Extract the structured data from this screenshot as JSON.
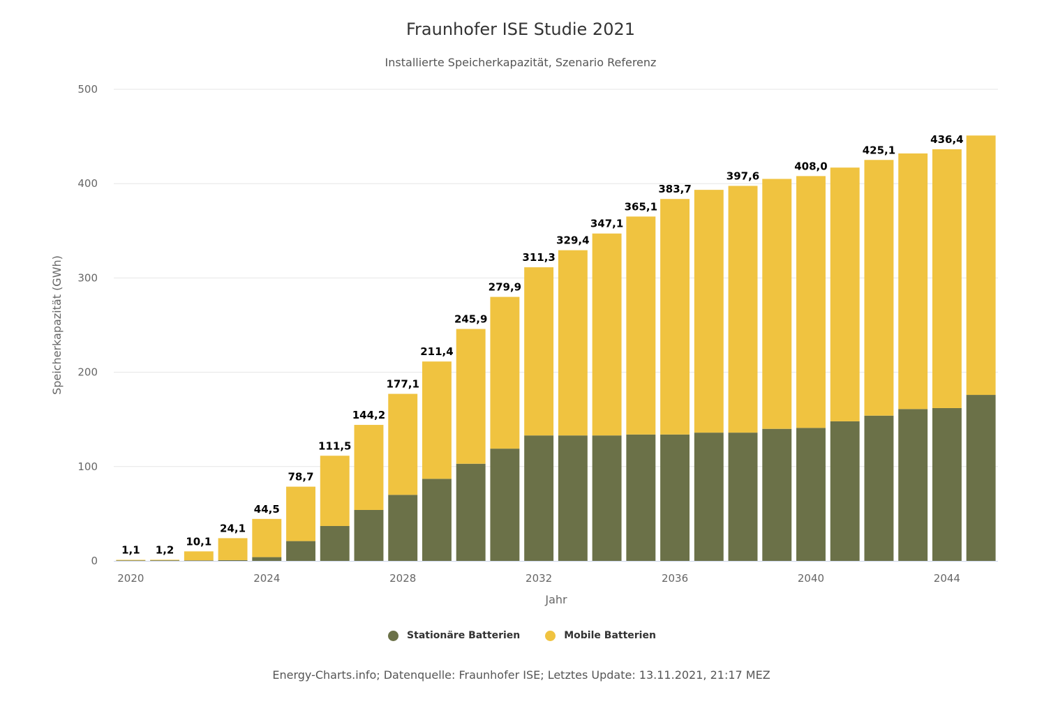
{
  "chart_data": {
    "type": "bar",
    "stacked": true,
    "title": "Fraunhofer ISE Studie 2021",
    "subtitle": "Installierte Speicherkapazität, Szenario Referenz",
    "xlabel": "Jahr",
    "ylabel": "Speicherkapazität (GWh)",
    "ylim": [
      0,
      500
    ],
    "yticks": [
      "0",
      "100",
      "200",
      "300",
      "400",
      "500"
    ],
    "xticks": [
      "2020",
      "2024",
      "2028",
      "2032",
      "2036",
      "2040",
      "2044"
    ],
    "grid": true,
    "legend_position": "bottom",
    "categories": [
      2020,
      2021,
      2022,
      2023,
      2024,
      2025,
      2026,
      2027,
      2028,
      2029,
      2030,
      2031,
      2032,
      2033,
      2034,
      2035,
      2036,
      2037,
      2038,
      2039,
      2040,
      2041,
      2042,
      2043,
      2044,
      2045
    ],
    "series": [
      {
        "name": "Stationäre Batterien",
        "color": "#6b7148",
        "values": [
          0.5,
          0.6,
          0.5,
          0.8,
          4,
          21,
          37,
          54,
          70,
          87,
          103,
          119,
          133,
          133,
          133,
          134,
          134,
          136,
          136,
          140,
          141,
          148,
          154,
          161,
          162,
          176
        ]
      },
      {
        "name": "Mobile Batterien",
        "color": "#f0c340",
        "values": [
          0.6,
          0.6,
          9.6,
          23.3,
          40.5,
          57.7,
          74.5,
          90.2,
          107.1,
          124.4,
          142.9,
          160.9,
          178.3,
          196.4,
          214.1,
          231.1,
          249.7,
          257.4,
          261.6,
          265.0,
          267.0,
          269.0,
          271.1,
          271.0,
          274.4,
          275.0
        ]
      }
    ],
    "labels": [
      "1,1",
      "1,2",
      "10,1",
      "24,1",
      "44,5",
      "78,7",
      "111,5",
      "144,2",
      "177,1",
      "211,4",
      "245,9",
      "279,9",
      "311,3",
      "329,4",
      "347,1",
      "365,1",
      "383,7",
      null,
      "397,6",
      null,
      "408,0",
      null,
      "425,1",
      null,
      "436,4",
      null
    ]
  },
  "credits": "Energy-Charts.info; Datenquelle: Fraunhofer ISE; Letztes Update: 13.11.2021, 21:17 MEZ"
}
